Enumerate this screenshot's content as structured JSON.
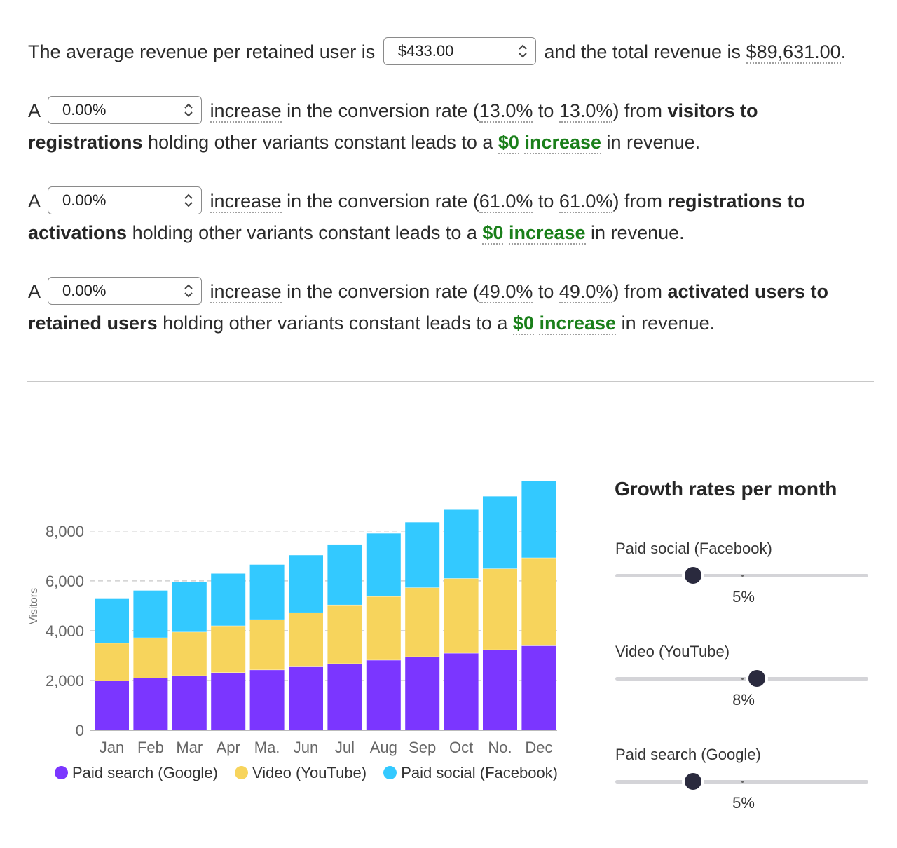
{
  "revenue": {
    "prefix": "The average revenue per retained user is",
    "input_value": "$433.00",
    "middle": "and the total revenue is",
    "total": "$89,631.00",
    "suffix": "."
  },
  "scenarios": [
    {
      "lead": "A",
      "input_value": "0.00%",
      "increase_word": "increase",
      "text1": " in the conversion rate (",
      "rate_from": "13.0%",
      "to_word": " to ",
      "rate_to": "13.0%",
      "text2": ") from ",
      "stage_bold": "visitors to registrations",
      "text3": " holding other variants constant leads to a ",
      "amount": "$0",
      "amount_word": "increase",
      "text4": " in revenue."
    },
    {
      "lead": "A",
      "input_value": "0.00%",
      "increase_word": "increase",
      "text1": " in the conversion rate (",
      "rate_from": "61.0%",
      "to_word": " to ",
      "rate_to": "61.0%",
      "text2": ") from ",
      "stage_bold": "registrations to activations",
      "text3": " holding other variants constant leads to a ",
      "amount": "$0",
      "amount_word": "increase",
      "text4": " in revenue."
    },
    {
      "lead": "A",
      "input_value": "0.00%",
      "increase_word": "increase",
      "text1": " in the conversion rate (",
      "rate_from": "49.0%",
      "to_word": " to ",
      "rate_to": "49.0%",
      "text2": ") from ",
      "stage_bold": "activated users to retained users",
      "text3": " holding other variants constant leads to a ",
      "amount": "$0",
      "amount_word": "increase",
      "text4": " in revenue."
    }
  ],
  "chart_data": {
    "type": "bar",
    "stacked": true,
    "categories": [
      "Jan",
      "Feb",
      "Mar",
      "Apr",
      "Ma.",
      "Jun",
      "Jul",
      "Aug",
      "Sep",
      "Oct",
      "No.",
      "Dec"
    ],
    "series": [
      {
        "name": "Paid search (Google)",
        "color": "#7b36ff",
        "values": [
          2000,
          2100,
          2200,
          2320,
          2430,
          2550,
          2680,
          2820,
          2960,
          3100,
          3240,
          3400
        ]
      },
      {
        "name": "Video (YouTube)",
        "color": "#f7d45c",
        "values": [
          1500,
          1620,
          1750,
          1880,
          2020,
          2180,
          2360,
          2560,
          2770,
          3000,
          3250,
          3530
        ]
      },
      {
        "name": "Paid social (Facebook)",
        "color": "#33c9ff",
        "values": [
          1800,
          1890,
          1990,
          2090,
          2200,
          2300,
          2420,
          2520,
          2620,
          2780,
          2900,
          3070
        ]
      }
    ],
    "ylabel": "Visitors",
    "yticks": [
      0,
      2000,
      4000,
      6000,
      8000
    ],
    "ytick_labels": [
      "0",
      "2,000",
      "4,000",
      "6,000",
      "8,000"
    ],
    "ylim": [
      0,
      10000
    ],
    "grid": true,
    "legend_position": "bottom"
  },
  "growth_panel": {
    "title": "Growth rates per month",
    "sliders": [
      {
        "label": "Paid social (Facebook)",
        "value_text": "5%",
        "value": 5
      },
      {
        "label": "Video (YouTube)",
        "value_text": "8%",
        "value": 8
      },
      {
        "label": "Paid search (Google)",
        "value_text": "5%",
        "value": 5
      }
    ]
  }
}
